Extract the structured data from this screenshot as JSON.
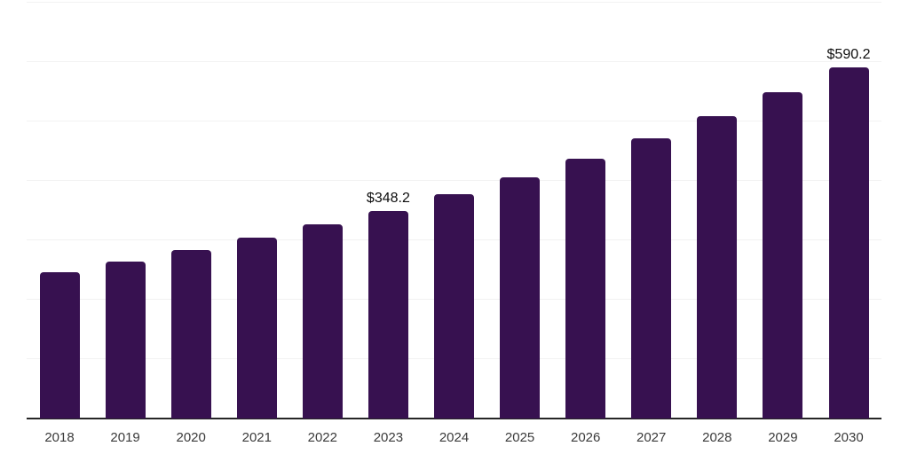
{
  "chart_data": {
    "type": "bar",
    "title": "",
    "xlabel": "",
    "ylabel": "",
    "categories": [
      "2018",
      "2019",
      "2020",
      "2021",
      "2022",
      "2023",
      "2024",
      "2025",
      "2026",
      "2027",
      "2028",
      "2029",
      "2030"
    ],
    "values": [
      245.5,
      263.4,
      282.7,
      303.6,
      325.9,
      348.2,
      375.5,
      404.9,
      436.6,
      470.8,
      507.6,
      547.4,
      590.2
    ],
    "data_labels": {
      "2023": "$348.2",
      "2030": "$590.2"
    },
    "ylim": [
      0,
      700
    ],
    "grid": {
      "show": true,
      "interval": 100,
      "color": "#f2f2f2"
    },
    "legend_position": "none",
    "bar_color": "#371150",
    "axis_line_color": "#262626",
    "tick_label_color": "#3a3a3a",
    "data_label_color": "#0d0d0d"
  }
}
